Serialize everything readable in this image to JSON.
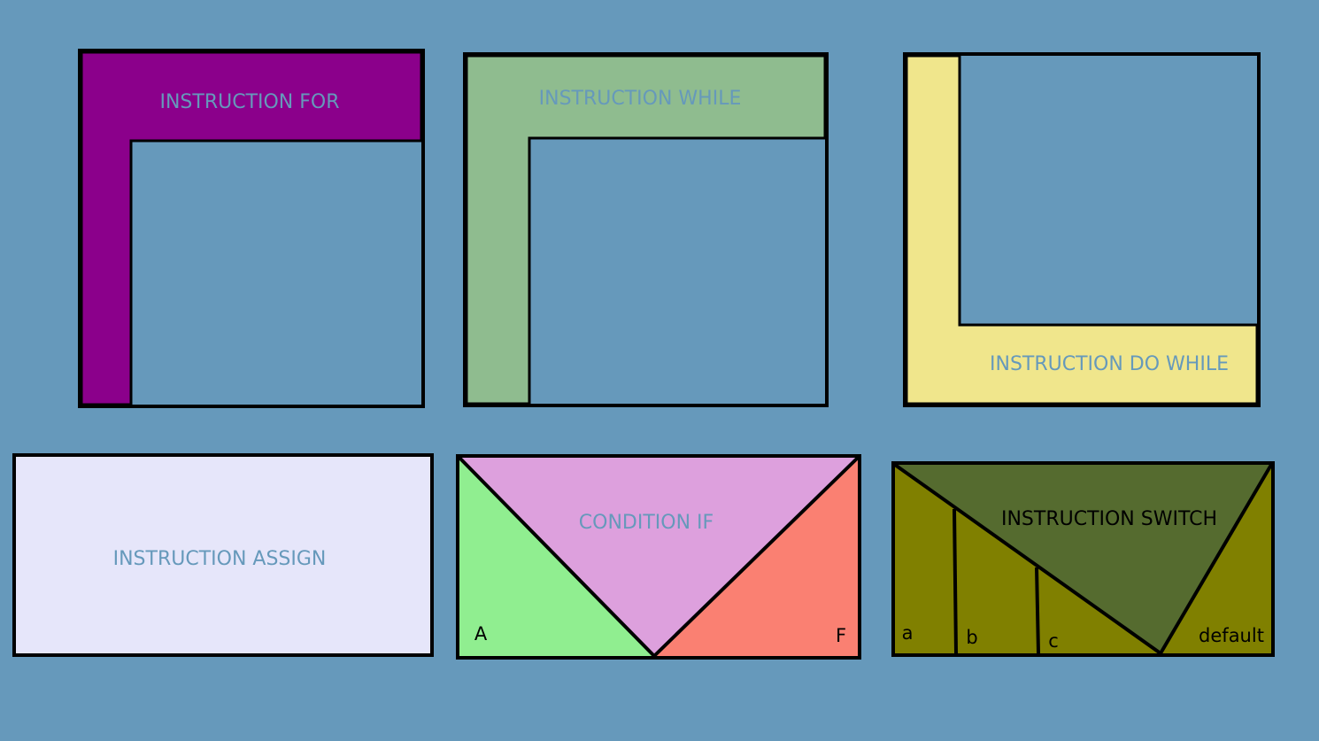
{
  "colors": {
    "background": "#6699bb",
    "outline": "#000000",
    "for_band": "#8b008b",
    "while_band": "#8fbc8f",
    "do_while_band": "#f0e68c",
    "assign_fill": "#e6e6fa",
    "if_true": "#90ee90",
    "if_condition": "#dda0dd",
    "if_false": "#fa8072",
    "switch_cases": "#808000",
    "switch_header": "#556b2f",
    "label_light": "#6699bb",
    "label_dark": "#000000"
  },
  "blocks": {
    "for": {
      "label": "INSTRUCTION FOR"
    },
    "while": {
      "label": "INSTRUCTION WHILE"
    },
    "do_while": {
      "label": "INSTRUCTION DO WHILE"
    },
    "assign": {
      "label": "INSTRUCTION ASSIGN"
    },
    "if": {
      "label": "CONDITION IF",
      "true_label": "A",
      "false_label": "F"
    },
    "switch": {
      "label": "INSTRUCTION SWITCH",
      "cases": [
        "a",
        "b",
        "c"
      ],
      "default_label": "default"
    }
  }
}
